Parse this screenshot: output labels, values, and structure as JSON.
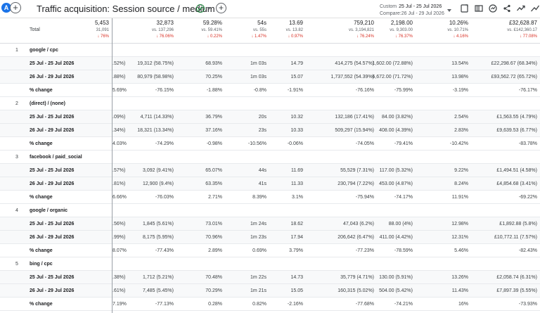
{
  "header": {
    "avatar_letter": "A",
    "add_symbol": "+",
    "title": "Traffic acquisition: Session source / medium",
    "date_label": "Custom",
    "date_range": "25 Jul - 25 Jul 2026",
    "compare_range": "Compare:26 Jul - 29 Jul 2026"
  },
  "total": {
    "label": "Total",
    "cols": [
      {
        "main": "5,453",
        "sub": "31,091",
        "delta": "↓ 76%"
      },
      {
        "main": "32,873",
        "sub": "vs. 137,296",
        "delta": "↓ 76.06%"
      },
      {
        "main": "59.28%",
        "sub": "vs. 59.41%",
        "delta": "↓ 0.22%"
      },
      {
        "main": "54s",
        "sub": "vs. 55s",
        "delta": "↓ 1.47%"
      },
      {
        "main": "13.69",
        "sub": "vs. 13.82",
        "delta": "↓ 0.97%"
      },
      {
        "main": "759,210",
        "sub": "vs. 3,194,821",
        "delta": "↓ 76.24%"
      },
      {
        "main": "2,198.00",
        "sub": "vs. 9,303.00",
        "delta": "↓ 76.37%"
      },
      {
        "main": "10.26%",
        "sub": "vs. 10.71%",
        "delta": "↓ 4.16%"
      },
      {
        "main": "£32,628.87",
        "sub": "vs. £142,360.17",
        "delta": "↓ 77.08%"
      }
    ]
  },
  "groups": [
    {
      "index": "1",
      "name": "google / cpc",
      "rows": [
        {
          "label": "25 Jul - 25 Jul 2026",
          "cells": [
            ".52%)",
            "19,312 (58.75%)",
            "68.93%",
            "1m 03s",
            "14.79",
            "414,275 (54.57%)",
            "1,602.00 (72.88%)",
            "13.54%",
            "£22,298.67 (68.34%)"
          ]
        },
        {
          "label": "26 Jul - 29 Jul 2026",
          "cells": [
            ".88%)",
            "80,979 (58.98%)",
            "70.25%",
            "1m 03s",
            "15.07",
            "1,737,552 (54.39%)",
            "6,672.00 (71.72%)",
            "13.98%",
            "£93,562.72 (65.72%)"
          ]
        },
        {
          "label": "% change",
          "cells": [
            "5.69%",
            "-76.15%",
            "-1.88%",
            "-0.8%",
            "-1.91%",
            "-76.16%",
            "-75.99%",
            "-3.19%",
            "-76.17%"
          ]
        }
      ]
    },
    {
      "index": "2",
      "name": "(direct) / (none)",
      "rows": [
        {
          "label": "25 Jul - 25 Jul 2026",
          "cells": [
            ".09%)",
            "4,711 (14.33%)",
            "36.79%",
            "20s",
            "10.32",
            "132,186 (17.41%)",
            "84.00 (3.82%)",
            "2.54%",
            "£1,563.55 (4.79%)"
          ]
        },
        {
          "label": "26 Jul - 29 Jul 2026",
          "cells": [
            ".34%)",
            "18,321 (13.34%)",
            "37.16%",
            "23s",
            "10.33",
            "509,297 (15.94%)",
            "408.00 (4.39%)",
            "2.83%",
            "£9,639.53 (6.77%)"
          ]
        },
        {
          "label": "% change",
          "cells": [
            "4.03%",
            "-74.29%",
            "-0.98%",
            "-10.56%",
            "-0.06%",
            "-74.05%",
            "-79.41%",
            "-10.42%",
            "-83.78%"
          ]
        }
      ]
    },
    {
      "index": "3",
      "name": "facebook / paid_social",
      "rows": [
        {
          "label": "25 Jul - 25 Jul 2026",
          "cells": [
            ".57%)",
            "3,092 (9.41%)",
            "65.07%",
            "44s",
            "11.69",
            "55,529 (7.31%)",
            "117.00 (5.32%)",
            "9.22%",
            "£1,494.51 (4.58%)"
          ]
        },
        {
          "label": "26 Jul - 29 Jul 2026",
          "cells": [
            ".81%)",
            "12,900 (9.4%)",
            "63.35%",
            "41s",
            "11.33",
            "230,794 (7.22%)",
            "453.00 (4.87%)",
            "8.24%",
            "£4,854.68 (3.41%)"
          ]
        },
        {
          "label": "% change",
          "cells": [
            "6.66%",
            "-76.03%",
            "2.71%",
            "8.39%",
            "3.1%",
            "-75.94%",
            "-74.17%",
            "11.91%",
            "-69.22%"
          ]
        }
      ]
    },
    {
      "index": "4",
      "name": "google / organic",
      "rows": [
        {
          "label": "25 Jul - 25 Jul 2026",
          "cells": [
            ".56%)",
            "1,845 (5.61%)",
            "73.01%",
            "1m 24s",
            "18.62",
            "47,043 (6.2%)",
            "88.00 (4%)",
            "12.98%",
            "£1,892.88 (5.8%)"
          ]
        },
        {
          "label": "26 Jul - 29 Jul 2026",
          "cells": [
            ".99%)",
            "8,175 (5.95%)",
            "70.96%",
            "1m 23s",
            "17.94",
            "206,642 (6.47%)",
            "411.00 (4.42%)",
            "12.31%",
            "£10,772.11 (7.57%)"
          ]
        },
        {
          "label": "% change",
          "cells": [
            "8.07%",
            "-77.43%",
            "2.89%",
            "0.69%",
            "3.79%",
            "-77.23%",
            "-78.59%",
            "5.46%",
            "-82.43%"
          ]
        }
      ]
    },
    {
      "index": "5",
      "name": "bing / cpc",
      "rows": [
        {
          "label": "25 Jul - 25 Jul 2026",
          "cells": [
            ".38%)",
            "1,712 (5.21%)",
            "70.48%",
            "1m 22s",
            "14.73",
            "35,779 (4.71%)",
            "130.00 (5.91%)",
            "13.26%",
            "£2,058.74 (6.31%)"
          ]
        },
        {
          "label": "26 Jul - 29 Jul 2026",
          "cells": [
            ".61%)",
            "7,485 (5.45%)",
            "70.29%",
            "1m 21s",
            "15.05",
            "160,315 (5.02%)",
            "504.00 (5.42%)",
            "11.43%",
            "£7,897.39 (5.55%)"
          ]
        },
        {
          "label": "% change",
          "cells": [
            "7.19%",
            "-77.13%",
            "0.28%",
            "0.82%",
            "-2.16%",
            "-77.68%",
            "-74.21%",
            "16%",
            "-73.93%"
          ]
        }
      ]
    }
  ]
}
